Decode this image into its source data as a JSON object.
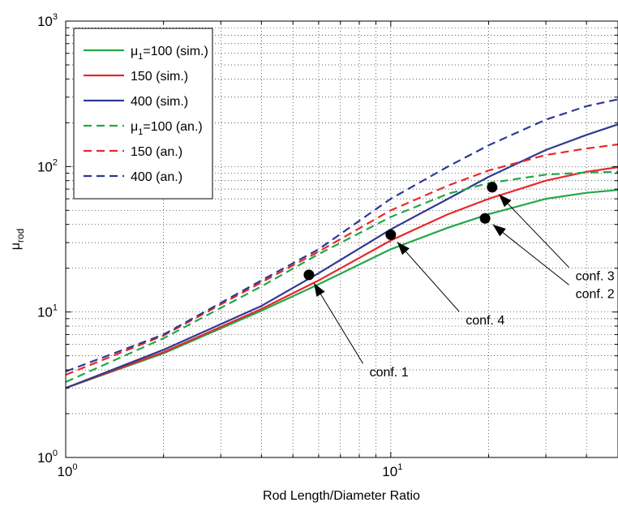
{
  "chart_data": {
    "type": "line",
    "xscale": "log",
    "yscale": "log",
    "xlim": [
      1,
      50
    ],
    "ylim": [
      1,
      1000
    ],
    "grid": true,
    "xlabel": "Rod Length/Diameter Ratio",
    "ylabel": {
      "base": "μ",
      "sub": "rod"
    },
    "x_ticks": [
      {
        "base": "10",
        "exp": "0"
      },
      {
        "base": "10",
        "exp": "1"
      }
    ],
    "y_ticks": [
      {
        "base": "10",
        "exp": "0"
      },
      {
        "base": "10",
        "exp": "1"
      },
      {
        "base": "10",
        "exp": "2"
      },
      {
        "base": "10",
        "exp": "3"
      }
    ],
    "legend_position": "top-left",
    "legend": [
      {
        "prefix": "μ",
        "sub": "1",
        "text": "=100 (sim.)",
        "color": "#22a84a",
        "dash": "solid"
      },
      {
        "prefix": "",
        "sub": "",
        "text": "150 (sim.)",
        "color": "#e8282b",
        "dash": "solid"
      },
      {
        "prefix": "",
        "sub": "",
        "text": "400 (sim.)",
        "color": "#2e3a92",
        "dash": "solid"
      },
      {
        "prefix": "μ",
        "sub": "1",
        "text": "=100 (an.)",
        "color": "#22a84a",
        "dash": "dashed"
      },
      {
        "prefix": "",
        "sub": "",
        "text": "150 (an.)",
        "color": "#e8282b",
        "dash": "dashed"
      },
      {
        "prefix": "",
        "sub": "",
        "text": "400 (an.)",
        "color": "#2e3a92",
        "dash": "dashed"
      }
    ],
    "series": [
      {
        "color": "#22a84a",
        "dash": "solid",
        "x": [
          1,
          2,
          4,
          6,
          10,
          15,
          20,
          30,
          40,
          50
        ],
        "y": [
          3.0,
          5.2,
          10.2,
          15.5,
          27,
          38,
          47,
          60,
          66,
          69
        ]
      },
      {
        "color": "#e8282b",
        "dash": "solid",
        "x": [
          1,
          2,
          4,
          6,
          10,
          15,
          20,
          30,
          40,
          50
        ],
        "y": [
          3.0,
          5.3,
          10.5,
          16.5,
          31,
          47,
          60,
          80,
          92,
          99
        ]
      },
      {
        "color": "#2e3a92",
        "dash": "solid",
        "x": [
          1,
          2,
          4,
          6,
          10,
          15,
          20,
          30,
          40,
          50
        ],
        "y": [
          3.0,
          5.5,
          11.0,
          18.5,
          37,
          60,
          85,
          130,
          165,
          195
        ]
      },
      {
        "color": "#22a84a",
        "dash": "dashed",
        "x": [
          1,
          2,
          4,
          6,
          10,
          15,
          20,
          30,
          40,
          50
        ],
        "y": [
          3.3,
          6.6,
          15,
          25,
          45,
          65,
          77,
          88,
          91,
          92
        ]
      },
      {
        "color": "#e8282b",
        "dash": "dashed",
        "x": [
          1,
          2,
          4,
          6,
          10,
          15,
          20,
          30,
          40,
          50
        ],
        "y": [
          3.7,
          6.9,
          16,
          26,
          50,
          74,
          94,
          120,
          133,
          142
        ]
      },
      {
        "color": "#2e3a92",
        "dash": "dashed",
        "x": [
          1,
          2,
          4,
          6,
          10,
          15,
          20,
          30,
          40,
          50
        ],
        "y": [
          3.9,
          7.0,
          16.5,
          27,
          60,
          100,
          140,
          210,
          260,
          290
        ]
      }
    ],
    "annotations": [
      {
        "text": "conf. 1",
        "point": [
          5.6,
          18
        ],
        "text_at": [
          8.6,
          3.6
        ]
      },
      {
        "text": "conf. 4",
        "point": [
          10,
          34
        ],
        "text_at": [
          17,
          8.2
        ]
      },
      {
        "text": "conf. 2",
        "point": [
          19.5,
          44
        ],
        "text_at": [
          37,
          12.5
        ]
      },
      {
        "text": "conf. 3",
        "point": [
          20.5,
          72
        ],
        "text_at": [
          37,
          16.5
        ]
      }
    ]
  }
}
